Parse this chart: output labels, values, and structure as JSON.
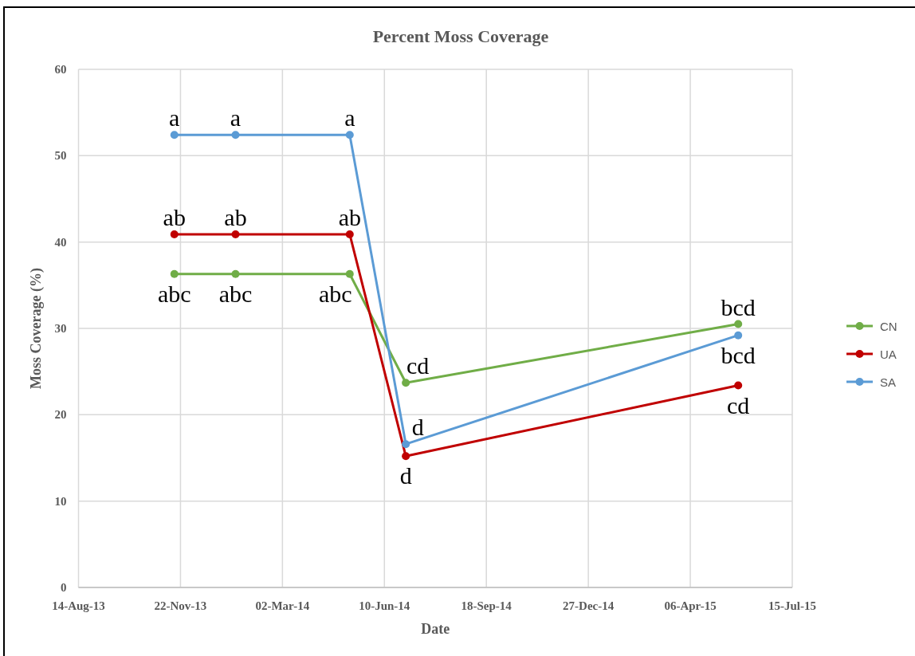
{
  "chart_data": {
    "type": "line",
    "title": "Percent Moss Coverage",
    "xlabel": "Date",
    "ylabel": "Moss Coverage (%)",
    "x": [
      "2013-11-16",
      "2014-01-15",
      "2014-05-07",
      "2014-07-01",
      "2015-05-23"
    ],
    "series": [
      {
        "name": "CN",
        "color": "#70ad47",
        "values": [
          36.3,
          36.3,
          36.3,
          23.7,
          30.5
        ]
      },
      {
        "name": "UA",
        "color": "#c00000",
        "values": [
          40.9,
          40.9,
          40.9,
          15.2,
          23.4
        ]
      },
      {
        "name": "SA",
        "color": "#5b9bd5",
        "values": [
          52.4,
          52.4,
          52.4,
          16.6,
          29.2
        ]
      }
    ],
    "xlim": [
      "2013-08-14",
      "2015-07-15"
    ],
    "xticks": [
      {
        "value": "2013-08-14",
        "label": "14-Aug-13"
      },
      {
        "value": "2013-11-22",
        "label": "22-Nov-13"
      },
      {
        "value": "2014-03-02",
        "label": "02-Mar-14"
      },
      {
        "value": "2014-06-10",
        "label": "10-Jun-14"
      },
      {
        "value": "2014-09-18",
        "label": "18-Sep-14"
      },
      {
        "value": "2014-12-27",
        "label": "27-Dec-14"
      },
      {
        "value": "2015-04-06",
        "label": "06-Apr-15"
      },
      {
        "value": "2015-07-15",
        "label": "15-Jul-15"
      }
    ],
    "ylim": [
      0,
      60
    ],
    "yticks": [
      0,
      10,
      20,
      30,
      40,
      50,
      60
    ],
    "grid": true,
    "legend": "right",
    "marker": "circle",
    "line_style": "solid",
    "annotations": [
      {
        "text": "a",
        "x": "2013-11-16",
        "y": 52.4
      },
      {
        "text": "a",
        "x": "2014-01-15",
        "y": 52.4
      },
      {
        "text": "a",
        "x": "2014-05-07",
        "y": 52.4
      },
      {
        "text": "ab",
        "x": "2013-11-16",
        "y": 40.9
      },
      {
        "text": "ab",
        "x": "2014-01-15",
        "y": 40.9
      },
      {
        "text": "ab",
        "x": "2014-05-07",
        "y": 40.9
      },
      {
        "text": "abc",
        "x": "2013-11-16",
        "y": 36.3
      },
      {
        "text": "abc",
        "x": "2014-01-15",
        "y": 36.3
      },
      {
        "text": "abc",
        "x": "2014-05-07",
        "y": 36.3
      },
      {
        "text": "cd",
        "x": "2014-07-01",
        "y": 23.7
      },
      {
        "text": "d",
        "x": "2014-07-01",
        "y": 16.6
      },
      {
        "text": "d",
        "x": "2014-07-01",
        "y": 15.2
      },
      {
        "text": "bcd",
        "x": "2015-05-23",
        "y": 30.5
      },
      {
        "text": "bcd",
        "x": "2015-05-23",
        "y": 29.2
      },
      {
        "text": "cd",
        "x": "2015-05-23",
        "y": 23.4
      }
    ]
  }
}
